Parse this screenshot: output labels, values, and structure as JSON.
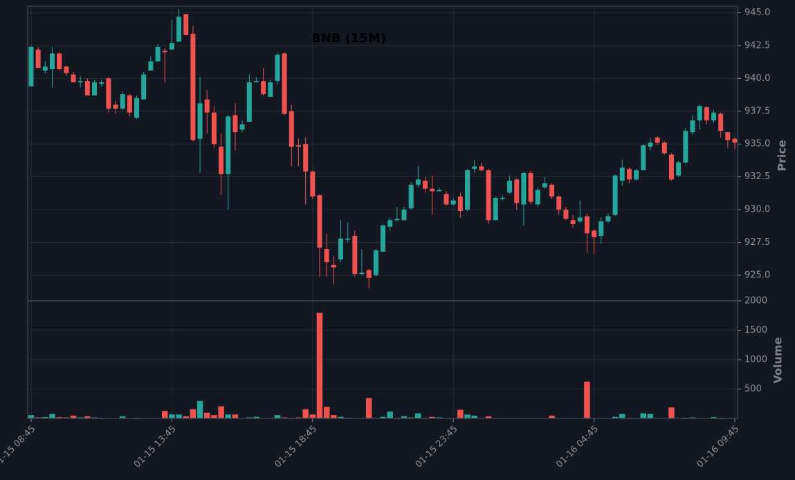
{
  "chart_data": [
    {
      "type": "candlestick",
      "title": "BNB (15M)",
      "ylabel": "Price",
      "grid": true,
      "up_color": "#26a69a",
      "down_color": "#ef5350",
      "categories": [
        "01-15 08:45",
        null,
        null,
        null,
        null,
        null,
        null,
        null,
        null,
        null,
        null,
        null,
        null,
        null,
        null,
        null,
        null,
        null,
        null,
        null,
        "01-15 13:45",
        null,
        null,
        null,
        null,
        null,
        null,
        null,
        null,
        null,
        null,
        null,
        null,
        null,
        null,
        null,
        null,
        null,
        null,
        null,
        "01-15 18:45",
        null,
        null,
        null,
        null,
        null,
        null,
        null,
        null,
        null,
        null,
        null,
        null,
        null,
        null,
        null,
        null,
        null,
        null,
        null,
        "01-15 23:45",
        null,
        null,
        null,
        null,
        null,
        null,
        null,
        null,
        null,
        null,
        null,
        null,
        null,
        null,
        null,
        null,
        null,
        null,
        null,
        "01-16 04:45",
        null,
        null,
        null,
        null,
        null,
        null,
        null,
        null,
        null,
        null,
        null,
        null,
        null,
        null,
        null,
        null,
        null,
        null,
        null,
        "01-16 09:45"
      ],
      "open": [
        939.4,
        942.2,
        940.6,
        940.7,
        941.9,
        940.9,
        940.3,
        939.7,
        939.8,
        938.7,
        939.6,
        940.0,
        938.0,
        937.7,
        938.7,
        937.0,
        938.4,
        940.6,
        941.3,
        942.1,
        942.2,
        942.8,
        944.9,
        943.4,
        935.4,
        938.4,
        937.4,
        934.8,
        932.7,
        937.2,
        936.1,
        936.7,
        939.7,
        939.8,
        938.6,
        939.8,
        941.9,
        937.5,
        934.9,
        935.0,
        932.9,
        931.1,
        927.0,
        925.8,
        926.2,
        927.7,
        928.0,
        925.1,
        925.4,
        925.0,
        926.8,
        928.7,
        929.2,
        929.2,
        930.1,
        931.9,
        932.2,
        931.6,
        931.4,
        931.2,
        930.4,
        931.0,
        930.0,
        933.1,
        933.3,
        933.0,
        929.2,
        930.8,
        931.3,
        932.3,
        930.4,
        932.8,
        930.4,
        931.7,
        931.9,
        931.0,
        930.0,
        929.2,
        929.1,
        929.5,
        928.4,
        928.0,
        929.1,
        929.6,
        932.2,
        933.1,
        932.3,
        933.0,
        934.8,
        935.5,
        935.1,
        934.2,
        932.6,
        933.6,
        935.9,
        936.8,
        937.8,
        936.8,
        937.3,
        935.9,
        935.4
      ],
      "high": [
        942.5,
        942.4,
        941.3,
        942.4,
        942.0,
        941.0,
        940.5,
        940.2,
        940.0,
        939.9,
        939.9,
        940.1,
        938.3,
        939.0,
        938.8,
        938.7,
        940.5,
        941.7,
        942.6,
        942.3,
        944.5,
        945.3,
        944.9,
        944.0,
        940.1,
        939.1,
        937.9,
        935.8,
        937.2,
        938.1,
        936.8,
        940.3,
        940.1,
        940.8,
        939.9,
        942.0,
        942.0,
        938.0,
        935.4,
        935.5,
        933.0,
        931.2,
        928.2,
        926.5,
        929.2,
        929.0,
        928.4,
        927.0,
        925.5,
        927.0,
        928.9,
        929.4,
        930.2,
        930.2,
        932.1,
        933.3,
        932.5,
        932.6,
        931.7,
        931.4,
        930.9,
        931.3,
        933.1,
        933.8,
        933.6,
        933.1,
        931.0,
        931.1,
        932.6,
        932.4,
        932.9,
        933.0,
        931.7,
        932.5,
        932.0,
        931.1,
        930.2,
        929.6,
        930.7,
        929.7,
        928.5,
        929.4,
        929.7,
        932.7,
        933.8,
        933.2,
        933.1,
        935.0,
        935.5,
        935.6,
        935.2,
        934.3,
        933.7,
        936.2,
        937.2,
        938.0,
        937.9,
        937.6,
        937.4,
        935.9,
        935.5
      ],
      "low": [
        939.4,
        940.8,
        940.4,
        939.3,
        940.6,
        940.2,
        939.7,
        939.3,
        938.7,
        938.7,
        939.4,
        937.4,
        937.3,
        937.6,
        937.1,
        936.9,
        938.4,
        940.6,
        941.3,
        939.7,
        942.2,
        942.8,
        943.3,
        935.2,
        932.8,
        935.8,
        934.7,
        931.1,
        930.0,
        934.5,
        935.9,
        936.7,
        939.7,
        938.7,
        938.6,
        939.5,
        937.2,
        933.3,
        933.3,
        930.4,
        930.8,
        924.9,
        924.9,
        924.3,
        926.0,
        927.5,
        924.9,
        925.0,
        924.0,
        924.9,
        926.8,
        928.4,
        929.1,
        929.2,
        930.0,
        931.7,
        931.3,
        929.6,
        931.4,
        930.3,
        930.3,
        929.4,
        929.9,
        932.8,
        932.9,
        928.9,
        929.2,
        930.7,
        931.2,
        930.0,
        928.8,
        930.4,
        930.2,
        931.6,
        930.8,
        929.6,
        929.2,
        928.6,
        929.0,
        926.7,
        926.6,
        927.4,
        929.0,
        929.5,
        931.8,
        932.0,
        932.2,
        933.0,
        934.5,
        934.9,
        934.2,
        932.2,
        932.5,
        933.5,
        935.7,
        936.1,
        936.5,
        936.6,
        935.5,
        934.7,
        934.6
      ],
      "close": [
        942.4,
        940.8,
        940.9,
        941.9,
        940.7,
        940.4,
        939.7,
        939.8,
        938.7,
        939.7,
        939.7,
        937.7,
        937.7,
        938.8,
        937.4,
        938.5,
        940.3,
        941.3,
        942.4,
        942.0,
        942.7,
        944.7,
        943.3,
        935.3,
        938.1,
        937.4,
        935.0,
        932.7,
        937.1,
        935.9,
        936.5,
        939.7,
        939.8,
        938.8,
        939.7,
        941.8,
        937.3,
        934.8,
        934.8,
        932.9,
        931.0,
        927.1,
        926.0,
        925.6,
        927.8,
        927.8,
        925.1,
        925.2,
        924.8,
        926.9,
        928.8,
        929.2,
        929.3,
        930.0,
        931.9,
        932.3,
        931.6,
        931.4,
        931.5,
        930.4,
        930.7,
        929.9,
        933.0,
        933.3,
        933.0,
        929.2,
        930.9,
        930.9,
        932.2,
        930.5,
        932.8,
        930.6,
        931.5,
        932.0,
        931.0,
        930.0,
        929.3,
        928.9,
        929.4,
        928.2,
        927.9,
        929.1,
        929.5,
        932.6,
        933.2,
        932.3,
        933.0,
        934.9,
        935.1,
        935.1,
        934.3,
        932.3,
        933.6,
        936.0,
        936.8,
        937.9,
        936.8,
        937.4,
        936.0,
        935.3,
        935.1
      ],
      "ylim": [
        923.05,
        945.5
      ],
      "yticks": [
        {
          "value": 925,
          "label": "925.0"
        },
        {
          "value": 927.5,
          "label": "927.5"
        },
        {
          "value": 930,
          "label": "930.0"
        },
        {
          "value": 932.5,
          "label": "932.5"
        },
        {
          "value": 935,
          "label": "935.0"
        },
        {
          "value": 937.5,
          "label": "937.5"
        },
        {
          "value": 940,
          "label": "940.0"
        },
        {
          "value": 942.5,
          "label": "942.5"
        },
        {
          "value": 945,
          "label": "945.0"
        }
      ]
    },
    {
      "type": "bar",
      "ylabel": "Volume",
      "grid": true,
      "values": [
        60,
        20,
        25,
        80,
        25,
        20,
        50,
        20,
        40,
        20,
        15,
        10,
        10,
        40,
        10,
        15,
        10,
        5,
        5,
        130,
        70,
        70,
        40,
        160,
        300,
        100,
        60,
        210,
        70,
        70,
        10,
        20,
        30,
        10,
        10,
        60,
        20,
        15,
        20,
        160,
        70,
        1800,
        200,
        60,
        30,
        15,
        10,
        10,
        350,
        15,
        30,
        120,
        15,
        40,
        20,
        90,
        15,
        30,
        20,
        10,
        10,
        150,
        70,
        50,
        10,
        40,
        10,
        5,
        5,
        5,
        10,
        5,
        10,
        10,
        50,
        5,
        5,
        10,
        5,
        630,
        10,
        5,
        5,
        30,
        80,
        15,
        10,
        90,
        80,
        5,
        10,
        190,
        5,
        15,
        20,
        10,
        5,
        25,
        15,
        5,
        5
      ],
      "ylim": [
        0,
        2000
      ],
      "yticks": [
        500,
        1000,
        1500,
        2000
      ]
    }
  ]
}
